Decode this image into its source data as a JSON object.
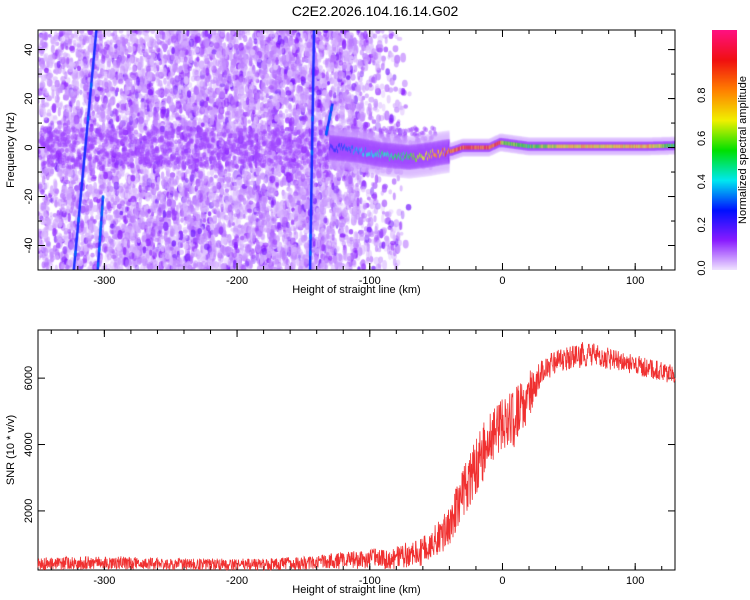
{
  "chart_data": [
    {
      "type": "heatmap",
      "title": "C2E2.2026.104.16.14.G02",
      "xlabel": "Height of straight line (km)",
      "ylabel": "Frequency (Hz)",
      "xlim": [
        -350,
        130
      ],
      "ylim": [
        -50,
        48
      ],
      "xticks": [
        -300,
        -200,
        -100,
        0,
        100
      ],
      "yticks": [
        -40,
        -20,
        0,
        20,
        40
      ],
      "colorbar": {
        "label": "Normalized spectral amplitude",
        "range": [
          0,
          1
        ],
        "ticks": [
          "0.0",
          "0.2",
          "0.4",
          "0.6",
          "0.8"
        ],
        "colors": [
          "#f2e8ff",
          "#8a1cff",
          "#0010ff",
          "#00e8f0",
          "#00e000",
          "#f0f000",
          "#ff8000",
          "#f01010",
          "#ff1080"
        ]
      },
      "noise_region_xmax": -90,
      "ridge": {
        "x": [
          -130,
          -110,
          -90,
          -70,
          -55,
          -45,
          -38,
          -30,
          -20,
          -10,
          -2,
          0,
          20,
          50,
          80,
          110,
          130
        ],
        "freq": [
          0,
          -1,
          -3,
          -4,
          -3,
          -2,
          -1.5,
          0,
          0,
          0,
          2,
          2,
          0.5,
          0.5,
          0.5,
          0.5,
          0.8
        ],
        "amplitude": [
          0.25,
          0.35,
          0.45,
          0.55,
          0.7,
          0.85,
          0.9,
          0.9,
          0.9,
          0.9,
          0.9,
          0.6,
          0.55,
          0.75,
          0.7,
          0.75,
          0.5
        ]
      },
      "streaks": [
        {
          "x": [
            -323,
            -306
          ],
          "freq": [
            -50,
            48
          ]
        },
        {
          "x": [
            -305,
            -301
          ],
          "freq": [
            -50,
            -20
          ]
        },
        {
          "x": [
            -145,
            -142
          ],
          "freq": [
            -50,
            48
          ]
        },
        {
          "x": [
            -133,
            -128
          ],
          "freq": [
            5,
            18
          ]
        }
      ]
    },
    {
      "type": "line",
      "xlabel": "Height of straight line (km)",
      "ylabel": "SNR (10 * v/v)",
      "xlim": [
        -350,
        130
      ],
      "ylim": [
        220,
        7450
      ],
      "xticks": [
        -300,
        -200,
        -100,
        0,
        100
      ],
      "yticks": [
        2000,
        4000,
        6000
      ],
      "color": "#f03030",
      "x": [
        -350,
        -300,
        -250,
        -200,
        -150,
        -120,
        -100,
        -80,
        -60,
        -50,
        -40,
        -30,
        -20,
        -10,
        0,
        10,
        20,
        30,
        40,
        50,
        60,
        70,
        80,
        90,
        100,
        110,
        120,
        130
      ],
      "y": [
        400,
        450,
        400,
        380,
        420,
        500,
        550,
        600,
        800,
        1100,
        1500,
        2500,
        3400,
        4100,
        4600,
        4800,
        5500,
        6200,
        6500,
        6600,
        6700,
        6700,
        6600,
        6500,
        6400,
        6300,
        6200,
        6100
      ],
      "noise": [
        200,
        200,
        180,
        180,
        200,
        250,
        300,
        350,
        450,
        500,
        600,
        800,
        900,
        900,
        800,
        900,
        700,
        400,
        350,
        350,
        400,
        350,
        350,
        300,
        300,
        300,
        300,
        300
      ]
    }
  ]
}
